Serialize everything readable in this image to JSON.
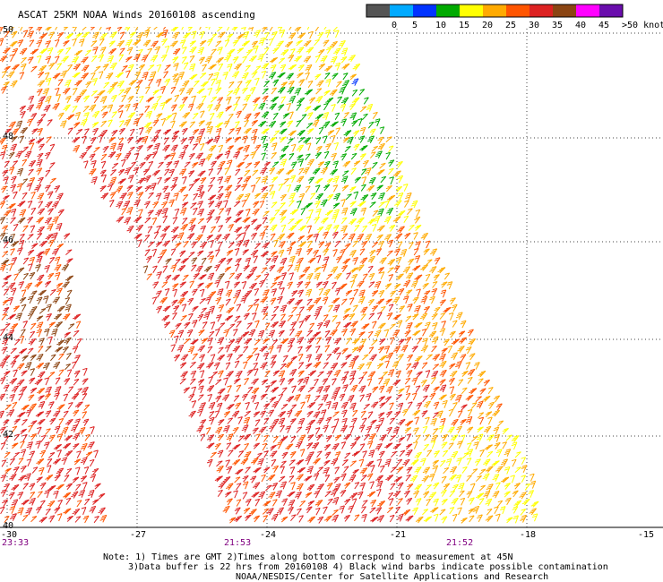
{
  "title": "ASCAT 25KM NOAA Winds 20160108 ascending",
  "colorbar": {
    "colors": [
      "#555555",
      "#00aaff",
      "#0033ff",
      "#00aa00",
      "#ffff00",
      "#ffaa00",
      "#ff5500",
      "#dd2222",
      "#8b4513",
      "#ff00ff",
      "#6a0dad"
    ],
    "labels": [
      "0",
      "5",
      "10",
      "15",
      "20",
      "25",
      "30",
      "35",
      "40",
      "45",
      ">50 knots"
    ]
  },
  "lat_labels": [
    "50",
    "48",
    "46",
    "44",
    "42",
    "40"
  ],
  "lon_labels": [
    "-30",
    "-27",
    "-24",
    "-21",
    "-18",
    "-15"
  ],
  "time_labels": [
    "23:33",
    "21:53",
    "21:52"
  ],
  "notes": [
    "Note: 1) Times are GMT 2)Times along bottom correspond to measurement at 45N",
    "3)Data buffer is 22 hrs from 20160108 4) Black wind barbs indicate possible contamination",
    "NOAA/NESDIS/Center for Satellite Applications and Research"
  ],
  "map": {
    "lat_range": [
      40,
      50.6
    ],
    "lon_range": [
      -30,
      -15
    ],
    "gridlines": "dotted",
    "swaths": [
      "west swath (time 23:33)",
      "east swath (times 21:53, 21:52)"
    ],
    "barb_color_by_speed_knots": true
  }
}
